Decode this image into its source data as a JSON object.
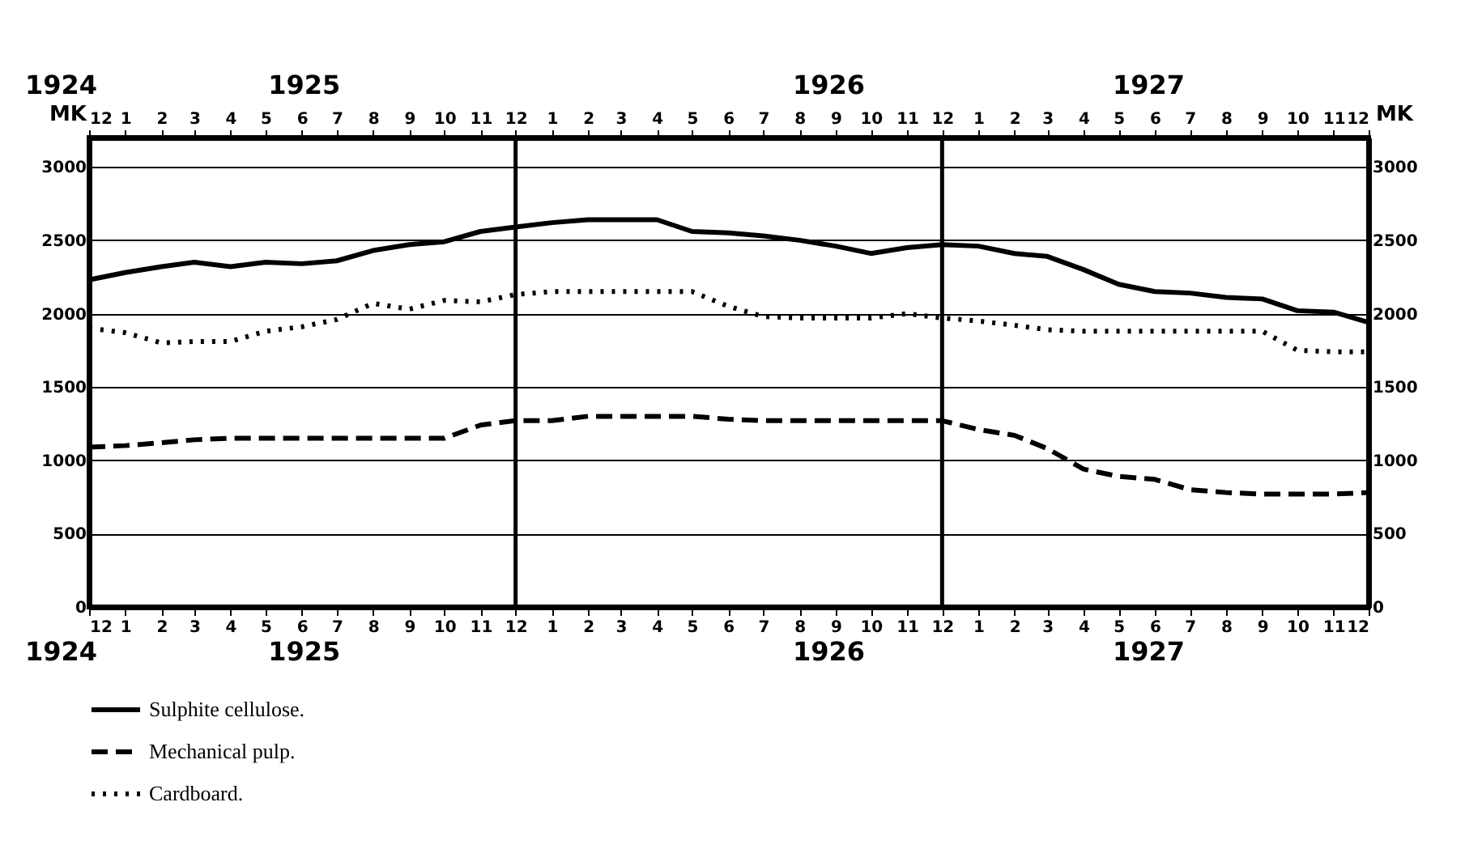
{
  "chart_data": {
    "type": "line",
    "ylabel": "MK",
    "y2label": "MK",
    "x": [
      "1924-12",
      "1925-01",
      "1925-02",
      "1925-03",
      "1925-04",
      "1925-05",
      "1925-06",
      "1925-07",
      "1925-08",
      "1925-09",
      "1925-10",
      "1925-11",
      "1925-12",
      "1926-01",
      "1926-02",
      "1926-03",
      "1926-04",
      "1926-05",
      "1926-06",
      "1926-07",
      "1926-08",
      "1926-09",
      "1926-10",
      "1926-11",
      "1926-12",
      "1927-01",
      "1927-02",
      "1927-03",
      "1927-04",
      "1927-05",
      "1927-06",
      "1927-07",
      "1927-08",
      "1927-09",
      "1927-10",
      "1927-11",
      "1927-12"
    ],
    "xlim": [
      "1924-12",
      "1927-12"
    ],
    "xticks": [
      {
        "value": "1924-12",
        "label": "12"
      },
      {
        "value": "1925-01",
        "label": "1"
      },
      {
        "value": "1925-02",
        "label": "2"
      },
      {
        "value": "1925-03",
        "label": "3"
      },
      {
        "value": "1925-04",
        "label": "4"
      },
      {
        "value": "1925-05",
        "label": "5"
      },
      {
        "value": "1925-06",
        "label": "6"
      },
      {
        "value": "1925-07",
        "label": "7"
      },
      {
        "value": "1925-08",
        "label": "8"
      },
      {
        "value": "1925-09",
        "label": "9"
      },
      {
        "value": "1925-10",
        "label": "10"
      },
      {
        "value": "1925-11",
        "label": "11"
      },
      {
        "value": "1925-12",
        "label": "12"
      },
      {
        "value": "1926-01",
        "label": "1"
      },
      {
        "value": "1926-02",
        "label": "2"
      },
      {
        "value": "1926-03",
        "label": "3"
      },
      {
        "value": "1926-04",
        "label": "4"
      },
      {
        "value": "1926-05",
        "label": "5"
      },
      {
        "value": "1926-06",
        "label": "6"
      },
      {
        "value": "1926-07",
        "label": "7"
      },
      {
        "value": "1926-08",
        "label": "8"
      },
      {
        "value": "1926-09",
        "label": "9"
      },
      {
        "value": "1926-10",
        "label": "10"
      },
      {
        "value": "1926-11",
        "label": "11"
      },
      {
        "value": "1926-12",
        "label": "12"
      },
      {
        "value": "1927-01",
        "label": "1"
      },
      {
        "value": "1927-02",
        "label": "2"
      },
      {
        "value": "1927-03",
        "label": "3"
      },
      {
        "value": "1927-04",
        "label": "4"
      },
      {
        "value": "1927-05",
        "label": "5"
      },
      {
        "value": "1927-06",
        "label": "6"
      },
      {
        "value": "1927-07",
        "label": "7"
      },
      {
        "value": "1927-08",
        "label": "8"
      },
      {
        "value": "1927-09",
        "label": "9"
      },
      {
        "value": "1927-10",
        "label": "10"
      },
      {
        "value": "1927-11",
        "label": "11"
      },
      {
        "value": "1927-12",
        "label": "12"
      }
    ],
    "x2lim": [
      "1924-12",
      "1927-12"
    ],
    "x2ticks": [
      {
        "value": "1924-12",
        "label": "12"
      },
      {
        "value": "1925-01",
        "label": "1"
      },
      {
        "value": "1925-02",
        "label": "2"
      },
      {
        "value": "1925-03",
        "label": "3"
      },
      {
        "value": "1925-04",
        "label": "4"
      },
      {
        "value": "1925-05",
        "label": "5"
      },
      {
        "value": "1925-06",
        "label": "6"
      },
      {
        "value": "1925-07",
        "label": "7"
      },
      {
        "value": "1925-08",
        "label": "8"
      },
      {
        "value": "1925-09",
        "label": "9"
      },
      {
        "value": "1925-10",
        "label": "10"
      },
      {
        "value": "1925-11",
        "label": "11"
      },
      {
        "value": "1925-12",
        "label": "12"
      },
      {
        "value": "1926-01",
        "label": "1"
      },
      {
        "value": "1926-02",
        "label": "2"
      },
      {
        "value": "1926-03",
        "label": "3"
      },
      {
        "value": "1926-04",
        "label": "4"
      },
      {
        "value": "1926-05",
        "label": "5"
      },
      {
        "value": "1926-06",
        "label": "6"
      },
      {
        "value": "1926-07",
        "label": "7"
      },
      {
        "value": "1926-08",
        "label": "8"
      },
      {
        "value": "1926-09",
        "label": "9"
      },
      {
        "value": "1926-10",
        "label": "10"
      },
      {
        "value": "1926-11",
        "label": "11"
      },
      {
        "value": "1926-12",
        "label": "12"
      },
      {
        "value": "1927-01",
        "label": "1"
      },
      {
        "value": "1927-02",
        "label": "2"
      },
      {
        "value": "1927-03",
        "label": "3"
      },
      {
        "value": "1927-04",
        "label": "4"
      },
      {
        "value": "1927-05",
        "label": "5"
      },
      {
        "value": "1927-06",
        "label": "6"
      },
      {
        "value": "1927-07",
        "label": "7"
      },
      {
        "value": "1927-08",
        "label": "8"
      },
      {
        "value": "1927-09",
        "label": "9"
      },
      {
        "value": "1927-10",
        "label": "10"
      },
      {
        "value": "1927-11",
        "label": "11"
      },
      {
        "value": "1927-12",
        "label": "12"
      }
    ],
    "ylim": [
      0,
      3200
    ],
    "yticks": [
      0,
      500,
      1000,
      1500,
      2000,
      2500,
      3000
    ],
    "y2lim": [
      0,
      3200
    ],
    "y2ticks": [
      0,
      500,
      1000,
      1500,
      2000,
      2500,
      3000
    ],
    "grid": "y",
    "legend": "bottom",
    "marker": "none",
    "ref_lines": [
      {
        "axis": "x",
        "value": "1925-12",
        "color": "#000000"
      },
      {
        "axis": "x",
        "value": "1926-12",
        "color": "#000000"
      }
    ],
    "annotations": [
      "1924",
      "1925",
      "1926",
      "1927",
      "1924",
      "1925",
      "1926",
      "1927"
    ],
    "series": [
      {
        "name": "Sulphite cellulose.",
        "color": "#000000",
        "line_style": "solid",
        "values": [
          2230,
          2280,
          2320,
          2350,
          2320,
          2350,
          2340,
          2360,
          2430,
          2470,
          2490,
          2560,
          2590,
          2620,
          2640,
          2640,
          2640,
          2560,
          2550,
          2530,
          2500,
          2460,
          2410,
          2450,
          2470,
          2460,
          2410,
          2390,
          2300,
          2200,
          2150,
          2140,
          2110,
          2100,
          2020,
          2010,
          1940
        ]
      },
      {
        "name": "Mechanical pulp.",
        "color": "#000000",
        "line_style": "dashed",
        "values": [
          1090,
          1100,
          1120,
          1140,
          1150,
          1150,
          1150,
          1150,
          1150,
          1150,
          1150,
          1240,
          1270,
          1270,
          1300,
          1300,
          1300,
          1300,
          1280,
          1270,
          1270,
          1270,
          1270,
          1270,
          1270,
          1210,
          1170,
          1080,
          940,
          890,
          870,
          800,
          780,
          770,
          770,
          770,
          780
        ]
      },
      {
        "name": "Cardboard.",
        "color": "#000000",
        "line_style": "dotted",
        "values": [
          1900,
          1870,
          1800,
          1810,
          1810,
          1880,
          1910,
          1960,
          2070,
          2030,
          2090,
          2080,
          2130,
          2150,
          2150,
          2150,
          2150,
          2150,
          2050,
          1980,
          1970,
          1970,
          1970,
          2000,
          1970,
          1950,
          1920,
          1890,
          1880,
          1880,
          1880,
          1880,
          1880,
          1880,
          1750,
          1740,
          1740
        ]
      }
    ]
  }
}
